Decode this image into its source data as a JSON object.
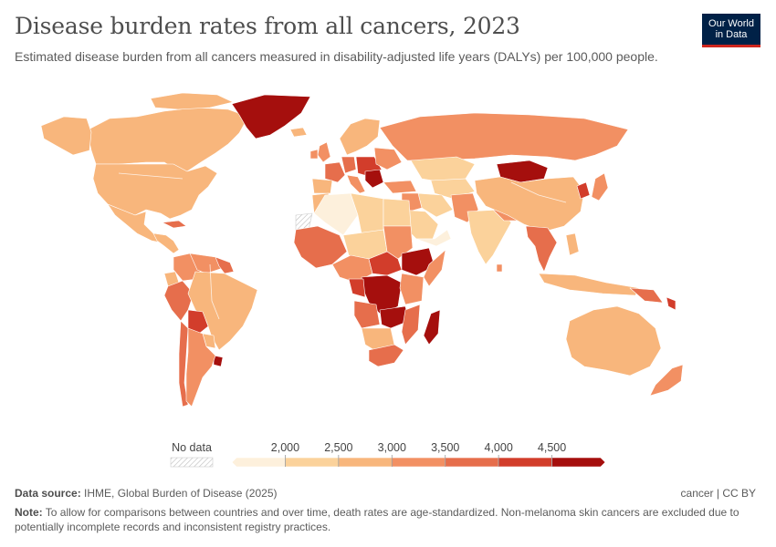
{
  "header": {
    "title": "Disease burden rates from all cancers, 2023",
    "subtitle": "Estimated disease burden from all cancers measured in disability-adjusted life years (DALYs) per 100,000 people.",
    "logo_line1": "Our World",
    "logo_line2": "in Data"
  },
  "legend": {
    "no_data_label": "No data",
    "ticks": [
      "2,000",
      "2,500",
      "3,000",
      "3,500",
      "4,000",
      "4,500"
    ],
    "colors": [
      "#fdf0dc",
      "#fbd29b",
      "#f8b67c",
      "#f29063",
      "#e66e4c",
      "#d23d2b",
      "#a50f0d"
    ]
  },
  "footer": {
    "source_label": "Data source:",
    "source_text": "IHME, Global Burden of Disease (2025)",
    "right_text": "cancer | CC BY",
    "note_label": "Note:",
    "note_text": "To allow for comparisons between countries and over time, death rates are age-standardized. Non-melanoma skin cancers are excluded due to potentially incomplete records and inconsistent registry practices."
  },
  "map_colors": {
    "c1": "#fdf0dc",
    "c2": "#fbd29b",
    "c3": "#f8b67c",
    "c4": "#f29063",
    "c5": "#e66e4c",
    "c6": "#d23d2b",
    "c7": "#a50f0d"
  }
}
